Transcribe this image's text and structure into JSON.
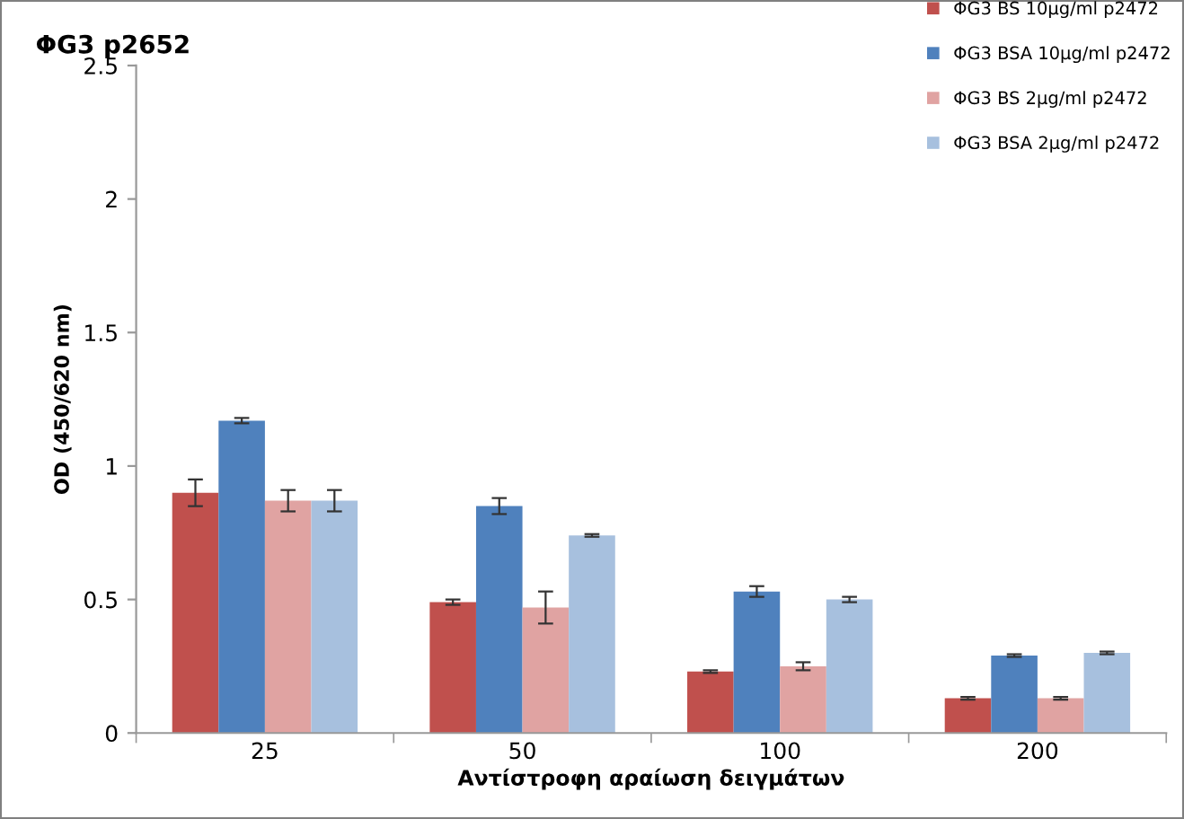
{
  "chart_data": {
    "type": "bar",
    "title": "ΦG3 p2652",
    "xlabel": "Αντίστροφη αραίωση δειγμάτων",
    "ylabel": "OD (450/620 nm)",
    "categories": [
      "25",
      "50",
      "100",
      "200"
    ],
    "series": [
      {
        "name": "ΦG3 BS 10μg/ml p2472",
        "color": "#c0504d",
        "values": [
          0.9,
          0.49,
          0.23,
          0.13
        ],
        "errors": [
          0.05,
          0.01,
          0.005,
          0.005
        ]
      },
      {
        "name": "ΦG3 BSA 10μg/ml p2472",
        "color": "#4f81bd",
        "values": [
          1.17,
          0.85,
          0.53,
          0.29
        ],
        "errors": [
          0.01,
          0.03,
          0.02,
          0.005
        ]
      },
      {
        "name": "ΦG3 BS 2μg/ml p2472",
        "color": "#e0a3a2",
        "values": [
          0.87,
          0.47,
          0.25,
          0.13
        ],
        "errors": [
          0.04,
          0.06,
          0.015,
          0.005
        ]
      },
      {
        "name": "ΦG3 BSA 2μg/ml p2472",
        "color": "#a7c0de",
        "values": [
          0.87,
          0.74,
          0.5,
          0.3
        ],
        "errors": [
          0.04,
          0.005,
          0.01,
          0.005
        ]
      }
    ],
    "ylim": [
      0,
      2.5
    ],
    "yticks": [
      0,
      0.5,
      1,
      1.5,
      2,
      2.5
    ],
    "grid": false,
    "legend": "top right"
  }
}
